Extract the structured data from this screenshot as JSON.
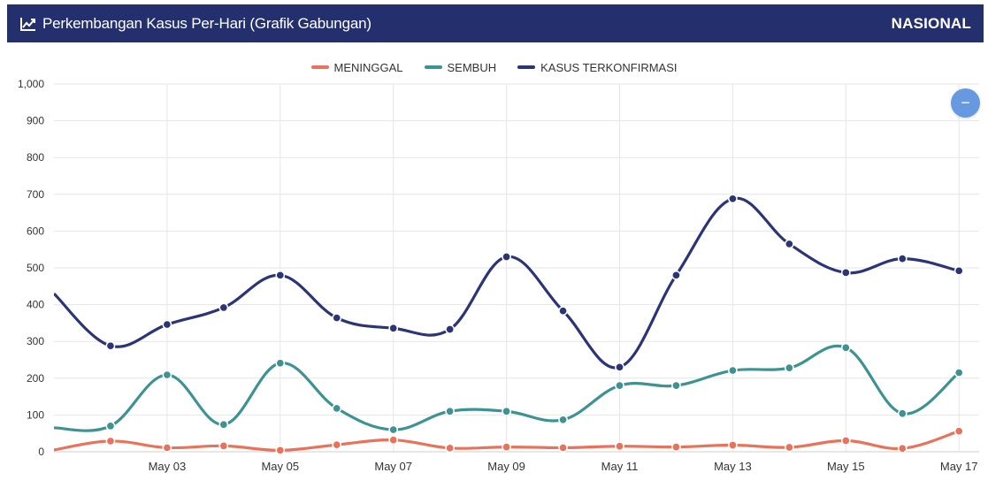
{
  "header": {
    "title": "Perkembangan Kasus Per-Hari (Grafik Gabungan)",
    "region": "NASIONAL",
    "icon": "line-chart-icon"
  },
  "zoom_button": {
    "label": "−",
    "icon": "minus-icon",
    "color": "#6699e0"
  },
  "colors": {
    "header_bg": "#24306e",
    "meninggal": "#e8735a",
    "sembuh": "#3d9391",
    "kasus": "#2c3478"
  },
  "legend": [
    {
      "label": "MENINGGAL",
      "color": "#e8735a"
    },
    {
      "label": "SEMBUH",
      "color": "#3d9391"
    },
    {
      "label": "KASUS TERKONFIRMASI",
      "color": "#2c3478"
    }
  ],
  "chart_data": {
    "type": "line",
    "x_tick_labels": [
      "May 03",
      "May 05",
      "May 07",
      "May 09",
      "May 11",
      "May 13",
      "May 15",
      "May 17"
    ],
    "x_dates": [
      "May 02",
      "May 03",
      "May 04",
      "May 05",
      "May 06",
      "May 07",
      "May 08",
      "May 09",
      "May 10",
      "May 11",
      "May 12",
      "May 13",
      "May 14",
      "May 15",
      "May 16",
      "May 17"
    ],
    "x_range": [
      "May 01",
      "May 18"
    ],
    "ylim": [
      0,
      1000
    ],
    "y_ticks": [
      "0",
      "100",
      "200",
      "300",
      "400",
      "500",
      "600",
      "700",
      "800",
      "900",
      "1,000"
    ],
    "grid": true,
    "legend_position": "top-center",
    "title": "",
    "xlabel": "",
    "ylabel": "",
    "series": [
      {
        "name": "MENINGGAL",
        "color": "#e8735a",
        "start_value": 5,
        "values": [
          29,
          11,
          16,
          4,
          19,
          32,
          10,
          13,
          11,
          15,
          13,
          18,
          12,
          30,
          9,
          56
        ]
      },
      {
        "name": "SEMBUH",
        "color": "#3d9391",
        "start_value": 65,
        "values": [
          70,
          209,
          74,
          241,
          118,
          60,
          110,
          110,
          87,
          180,
          180,
          221,
          228,
          283,
          104,
          215
        ]
      },
      {
        "name": "KASUS TERKONFIRMASI",
        "color": "#2c3478",
        "start_value": 430,
        "values": [
          288,
          346,
          392,
          480,
          364,
          336,
          333,
          530,
          383,
          230,
          480,
          688,
          565,
          487,
          525,
          492
        ]
      }
    ]
  }
}
